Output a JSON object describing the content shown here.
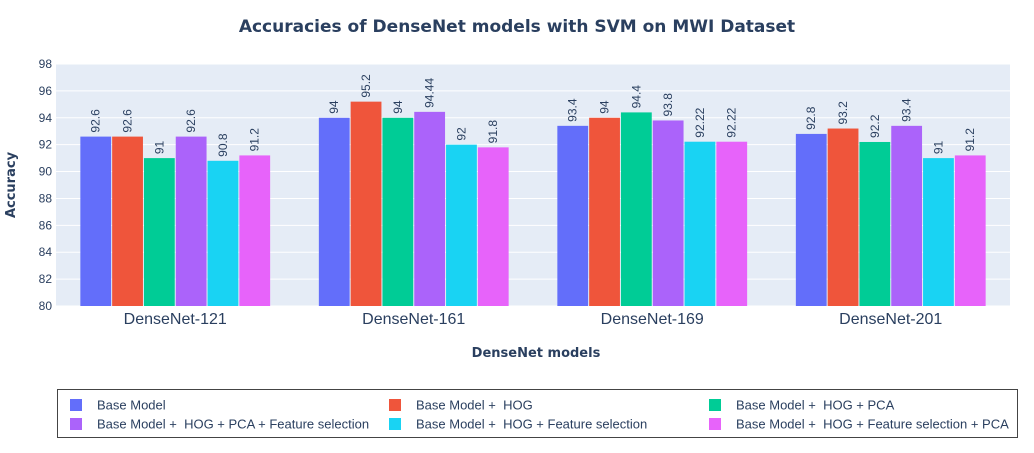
{
  "chart_data": {
    "type": "bar",
    "title": "Accuracies of DenseNet models with SVM on MWI Dataset",
    "xlabel": "DenseNet models",
    "ylabel": "Accuracy",
    "ylim": [
      80,
      98
    ],
    "yticks": [
      80,
      82,
      84,
      86,
      88,
      90,
      92,
      94,
      96,
      98
    ],
    "grid": true,
    "legend_position": "bottom",
    "categories": [
      "DenseNet-121",
      "DenseNet-161",
      "DenseNet-169",
      "DenseNet-201"
    ],
    "series": [
      {
        "name": "Base Model",
        "color": "#636efa",
        "values": [
          92.6,
          94,
          93.4,
          92.8
        ],
        "labels": [
          "92.6",
          "94",
          "93.4",
          "92.8"
        ]
      },
      {
        "name": "Base Model +  HOG",
        "color": "#ef553b",
        "values": [
          92.6,
          95.2,
          94,
          93.2
        ],
        "labels": [
          "92.6",
          "95.2",
          "94",
          "93.2"
        ]
      },
      {
        "name": "Base Model +  HOG + PCA",
        "color": "#00cc96",
        "values": [
          91,
          94,
          94.4,
          92.2
        ],
        "labels": [
          "91",
          "94",
          "94.4",
          "92.2"
        ]
      },
      {
        "name": "Base Model +  HOG + PCA + Feature selection",
        "color": "#ab63fa",
        "values": [
          92.6,
          94.44,
          93.8,
          93.4
        ],
        "labels": [
          "92.6",
          "94.44",
          "93.8",
          "93.4"
        ]
      },
      {
        "name": "Base Model +  HOG + Feature selection",
        "color": "#19d3f3",
        "values": [
          90.8,
          92,
          92.22,
          91
        ],
        "labels": [
          "90.8",
          "92",
          "92.22",
          "91"
        ]
      },
      {
        "name": "Base Model +  HOG + Feature selection + PCA",
        "color": "#e763fa",
        "values": [
          91.2,
          91.8,
          92.22,
          91.2
        ],
        "labels": [
          "91.2",
          "91.8",
          "92.22",
          "91.2"
        ]
      }
    ]
  }
}
